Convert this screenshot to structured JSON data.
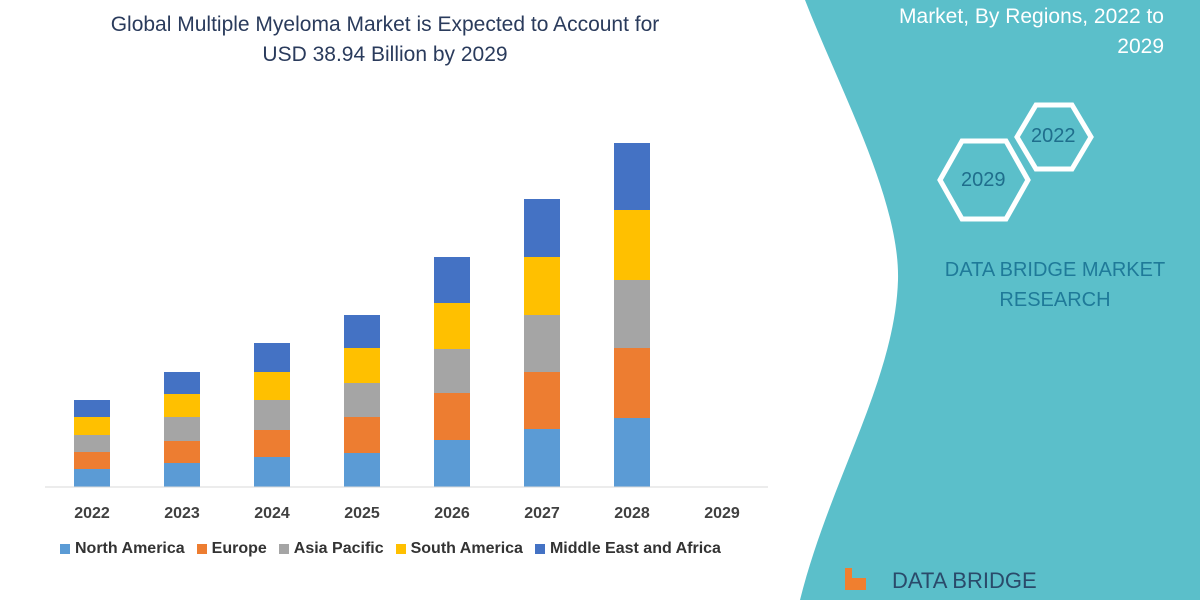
{
  "title_lines": [
    "Global Multiple Myeloma Market is Expected to Account for",
    "USD 38.94 Billion by 2029"
  ],
  "side_panel": {
    "title_lines": [
      "Market, By Regions, 2022 to",
      "2029"
    ],
    "hex_labels": [
      "2022",
      "2029"
    ],
    "brand_lines": [
      "DATA BRIDGE MARKET",
      "RESEARCH"
    ],
    "logo_text": "DATA BRIDGE",
    "color": "#5bbfca"
  },
  "chart_data": {
    "type": "bar",
    "stacked": true,
    "title": "Global Multiple Myeloma Market is Expected to Account for USD 38.94 Billion by 2029",
    "xlabel": "",
    "ylabel": "",
    "y_axis_shown": false,
    "grid": false,
    "legend_position": "bottom",
    "categories": [
      "2022",
      "2023",
      "2024",
      "2025",
      "2026",
      "2027",
      "2028",
      "2029"
    ],
    "ylim": [
      0,
      360
    ],
    "series": [
      {
        "name": "North America",
        "color": "#5b9bd5",
        "values": [
          18,
          24,
          30,
          34,
          47,
          58,
          69,
          0
        ]
      },
      {
        "name": "Europe",
        "color": "#ed7d31",
        "values": [
          17,
          22,
          27,
          36,
          47,
          57,
          70,
          0
        ]
      },
      {
        "name": "Asia Pacific",
        "color": "#a5a5a5",
        "values": [
          17,
          24,
          30,
          34,
          44,
          57,
          68,
          0
        ]
      },
      {
        "name": "South America",
        "color": "#ffc000",
        "values": [
          18,
          23,
          28,
          35,
          46,
          58,
          70,
          0
        ]
      },
      {
        "name": "Middle East and Africa",
        "color": "#4472c4",
        "values": [
          17,
          22,
          29,
          33,
          46,
          58,
          67,
          0
        ]
      }
    ]
  }
}
